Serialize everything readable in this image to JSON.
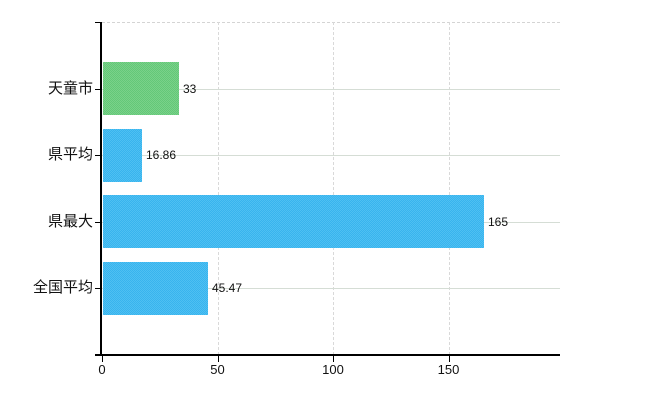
{
  "chart_data": {
    "type": "bar",
    "orientation": "horizontal",
    "title": "",
    "xlabel": "",
    "ylabel": "",
    "categories": [
      "天童市",
      "県平均",
      "県最大",
      "全国平均"
    ],
    "values": [
      33,
      16.86,
      165,
      45.47
    ],
    "value_labels": [
      "33",
      "16.86",
      "165",
      "45.47"
    ],
    "bar_colors": [
      {
        "base": "#63c878",
        "alt": "#7ad189"
      },
      {
        "base": "#38b4ee",
        "alt": "#4fc0f2"
      },
      {
        "base": "#38b4ee",
        "alt": "#4fc0f2"
      },
      {
        "base": "#38b4ee",
        "alt": "#4fc0f2"
      }
    ],
    "x_axis": {
      "tick_labels": [
        "0",
        "50",
        "100",
        "150"
      ],
      "tick_values": [
        0,
        50,
        100,
        150
      ],
      "max": 198
    },
    "xlim": [
      0,
      198
    ],
    "grid": true,
    "legend": false
  },
  "colors": {
    "axis": "#000000",
    "h_gridline": "#d5ddd5",
    "v_gridline": "#d9d9d9",
    "top_border": "#d4d4d4",
    "text": "#111111"
  }
}
